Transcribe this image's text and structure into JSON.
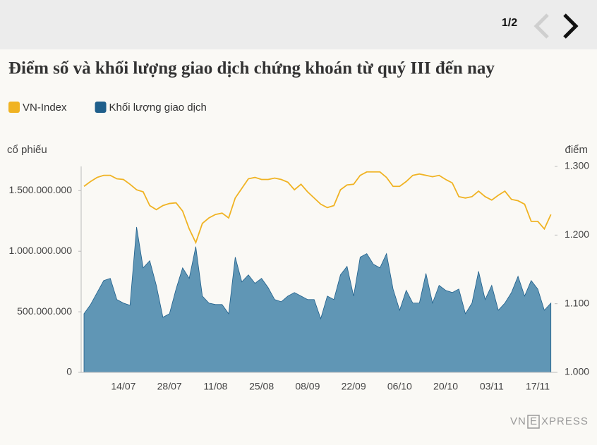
{
  "pager": "1/2",
  "brand": [
    "VN",
    "E",
    "XPRESS"
  ],
  "chart_data": {
    "type": "line",
    "title": "Điểm số và khối lượng giao dịch chứng khoán từ quý III đến nay",
    "y_label": "cổ phiếu",
    "y2_label": "điểm",
    "categories": [
      null,
      null,
      null,
      null,
      null,
      null,
      "14/07",
      null,
      null,
      null,
      null,
      null,
      null,
      "28/07",
      null,
      null,
      null,
      null,
      null,
      null,
      "11/08",
      null,
      null,
      null,
      null,
      null,
      null,
      "25/08",
      null,
      null,
      null,
      null,
      null,
      null,
      "08/09",
      null,
      null,
      null,
      null,
      null,
      null,
      "22/09",
      null,
      null,
      null,
      null,
      null,
      null,
      "06/10",
      null,
      null,
      null,
      null,
      null,
      null,
      "20/10",
      null,
      null,
      null,
      null,
      null,
      null,
      "03/11",
      null,
      null,
      null,
      null,
      null,
      null,
      "17/11",
      null,
      null
    ],
    "ylim": [
      0,
      1700000000
    ],
    "yticks": [
      0,
      {
        "value": 500000000,
        "label": "500.000.000"
      },
      {
        "value": 1000000000,
        "label": "1.000.000.000"
      },
      {
        "value": 1500000000,
        "label": "1.500.000.000"
      }
    ],
    "y2lim": [
      1.0,
      1.3
    ],
    "y2ticks": [
      {
        "value": 1.0,
        "label": "1.000"
      },
      {
        "value": 1.1,
        "label": "1.100"
      },
      {
        "value": 1.2,
        "label": "1.200"
      },
      {
        "value": 1.3,
        "label": "1.300"
      }
    ],
    "legend": "top-left",
    "series": [
      {
        "name": "VN-Index",
        "type": "line",
        "axis": "y2",
        "color": "#f0b323",
        "values": [
          1.271,
          1.278,
          1.284,
          1.287,
          1.287,
          1.282,
          1.281,
          1.274,
          1.266,
          1.263,
          1.243,
          1.237,
          1.243,
          1.246,
          1.247,
          1.235,
          1.209,
          1.189,
          1.217,
          1.225,
          1.23,
          1.232,
          1.225,
          1.254,
          1.268,
          1.282,
          1.284,
          1.281,
          1.281,
          1.283,
          1.281,
          1.277,
          1.266,
          1.274,
          1.263,
          1.254,
          1.245,
          1.24,
          1.243,
          1.266,
          1.273,
          1.274,
          1.287,
          1.292,
          1.292,
          1.292,
          1.284,
          1.271,
          1.271,
          1.278,
          1.287,
          1.289,
          1.287,
          1.285,
          1.287,
          1.281,
          1.276,
          1.256,
          1.254,
          1.256,
          1.264,
          1.256,
          1.251,
          1.258,
          1.264,
          1.252,
          1.25,
          1.245,
          1.22,
          1.22,
          1.209,
          1.23
        ]
      },
      {
        "name": "Khối lượng giao dịch",
        "type": "area",
        "axis": "y",
        "color": "#1f5f8b",
        "fill": "#6096b5",
        "values": [
          484000000,
          560000000,
          659000000,
          758000000,
          776000000,
          601000000,
          572000000,
          554000000,
          1200000000,
          863000000,
          922000000,
          718000000,
          455000000,
          484000000,
          688000000,
          863000000,
          776000000,
          1038000000,
          630000000,
          572000000,
          560000000,
          560000000,
          484000000,
          951000000,
          747000000,
          805000000,
          735000000,
          776000000,
          700000000,
          601000000,
          583000000,
          630000000,
          659000000,
          630000000,
          601000000,
          601000000,
          443000000,
          630000000,
          601000000,
          805000000,
          875000000,
          630000000,
          951000000,
          980000000,
          893000000,
          863000000,
          980000000,
          688000000,
          513000000,
          677000000,
          572000000,
          572000000,
          817000000,
          572000000,
          718000000,
          677000000,
          659000000,
          688000000,
          484000000,
          572000000,
          834000000,
          601000000,
          718000000,
          513000000,
          572000000,
          659000000,
          793000000,
          630000000,
          758000000,
          688000000,
          513000000,
          572000000
        ]
      }
    ]
  }
}
